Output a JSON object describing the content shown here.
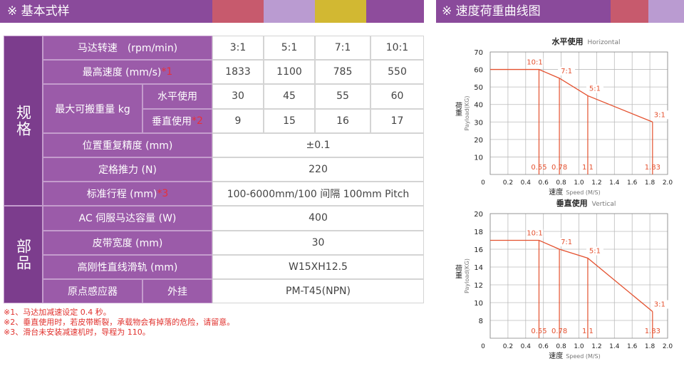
{
  "header": {
    "title": "※  基本式样"
  },
  "table": {
    "groups": [
      "规格",
      "部品"
    ],
    "rows": [
      {
        "label": "马达转速　(rpm/min)",
        "values": [
          "3:1",
          "5:1",
          "7:1",
          "10:1"
        ]
      },
      {
        "label": "最高速度 (mm/s) ",
        "mark": "*1",
        "values": [
          1833,
          1100,
          785,
          550
        ]
      },
      {
        "label": "最大可搬重量 kg",
        "sub": "水平使用",
        "values": [
          30,
          45,
          55,
          60
        ]
      },
      {
        "sub": "垂直使用 ",
        "mark": "*2",
        "values": [
          9,
          15,
          16,
          17
        ]
      },
      {
        "label": "位置重复精度 (mm)",
        "values": [
          "±0.1"
        ]
      },
      {
        "label": "定格推力 (N)",
        "values": [
          220
        ]
      },
      {
        "label": "标准行程 (mm)",
        "mark": "*3",
        "values": [
          "100-6000mm/100 间隔 100mm Pitch"
        ]
      },
      {
        "label": "AC 伺服马达容量 (W)",
        "values": [
          400
        ]
      },
      {
        "label": "皮带宽度 (mm)",
        "values": [
          30
        ]
      },
      {
        "label": "高刚性直线滑轨 (mm)",
        "values": [
          "W15XH12.5"
        ]
      },
      {
        "label": "原点感应器",
        "sub": "外挂",
        "values": [
          "PM-T45(NPN)"
        ]
      }
    ]
  },
  "notes": [
    "※1、马达加减速设定 0.4 秒。",
    "※2、垂直使用时，若皮带断裂，承载物会有掉落的危险，请留意。",
    "※3、滑台未安装减速机时，导程为 110。"
  ],
  "chart_header": {
    "title": "※ 速度荷重曲线图"
  },
  "chart_data": [
    {
      "type": "line",
      "title": "水平使用",
      "subtitle": "Horizontal",
      "ylabel": "荷重",
      "ylabel_en": "Payload(KG)",
      "xlabel": "速度",
      "xlabel_en": "Speed (M/S)",
      "x": [
        0,
        0.55,
        0.78,
        1.1,
        1.83
      ],
      "series": [
        {
          "color": "#e4512f",
          "values": [
            60,
            60,
            55,
            45,
            30
          ],
          "point_labels": [
            null,
            "10:1",
            "7:1",
            "5:1",
            "3:1"
          ],
          "x_value_labels": [
            null,
            "0.55",
            "0.78",
            "1.1",
            "1.83"
          ]
        }
      ],
      "xlim": [
        0,
        2.0
      ],
      "xticks": [
        0,
        0.2,
        0.4,
        0.6,
        0.8,
        {
          "value": 1.0,
          "label": "1.0"
        },
        1.2,
        1.4,
        1.6,
        1.8,
        {
          "value": 2.0,
          "label": "2.0"
        }
      ],
      "ylim": [
        0,
        70
      ],
      "yticks": [
        10,
        20,
        30,
        40,
        50,
        60,
        70
      ],
      "grid": true
    },
    {
      "type": "line",
      "title": "垂直使用",
      "subtitle": "Vertical",
      "ylabel": "荷重",
      "ylabel_en": "Payload(KG)",
      "xlabel": "速度",
      "xlabel_en": "Speed (M/S)",
      "x": [
        0,
        0.55,
        0.78,
        1.1,
        1.83
      ],
      "series": [
        {
          "color": "#e4512f",
          "values": [
            17,
            17,
            16,
            15,
            9
          ],
          "point_labels": [
            null,
            "10:1",
            "7:1",
            "5:1",
            "3:1"
          ],
          "x_value_labels": [
            null,
            "0.55",
            "0.78",
            "1.1",
            "1.83"
          ]
        }
      ],
      "xlim": [
        0,
        2.0
      ],
      "xticks": [
        0,
        0.2,
        0.4,
        0.6,
        0.8,
        {
          "value": 1.0,
          "label": "1.0"
        },
        1.2,
        1.4,
        1.6,
        1.8,
        {
          "value": 2.0,
          "label": "2.0"
        }
      ],
      "ylim": [
        6,
        20
      ],
      "yticks": [
        8,
        10,
        12,
        14,
        16,
        18,
        20
      ],
      "grid": true
    }
  ]
}
